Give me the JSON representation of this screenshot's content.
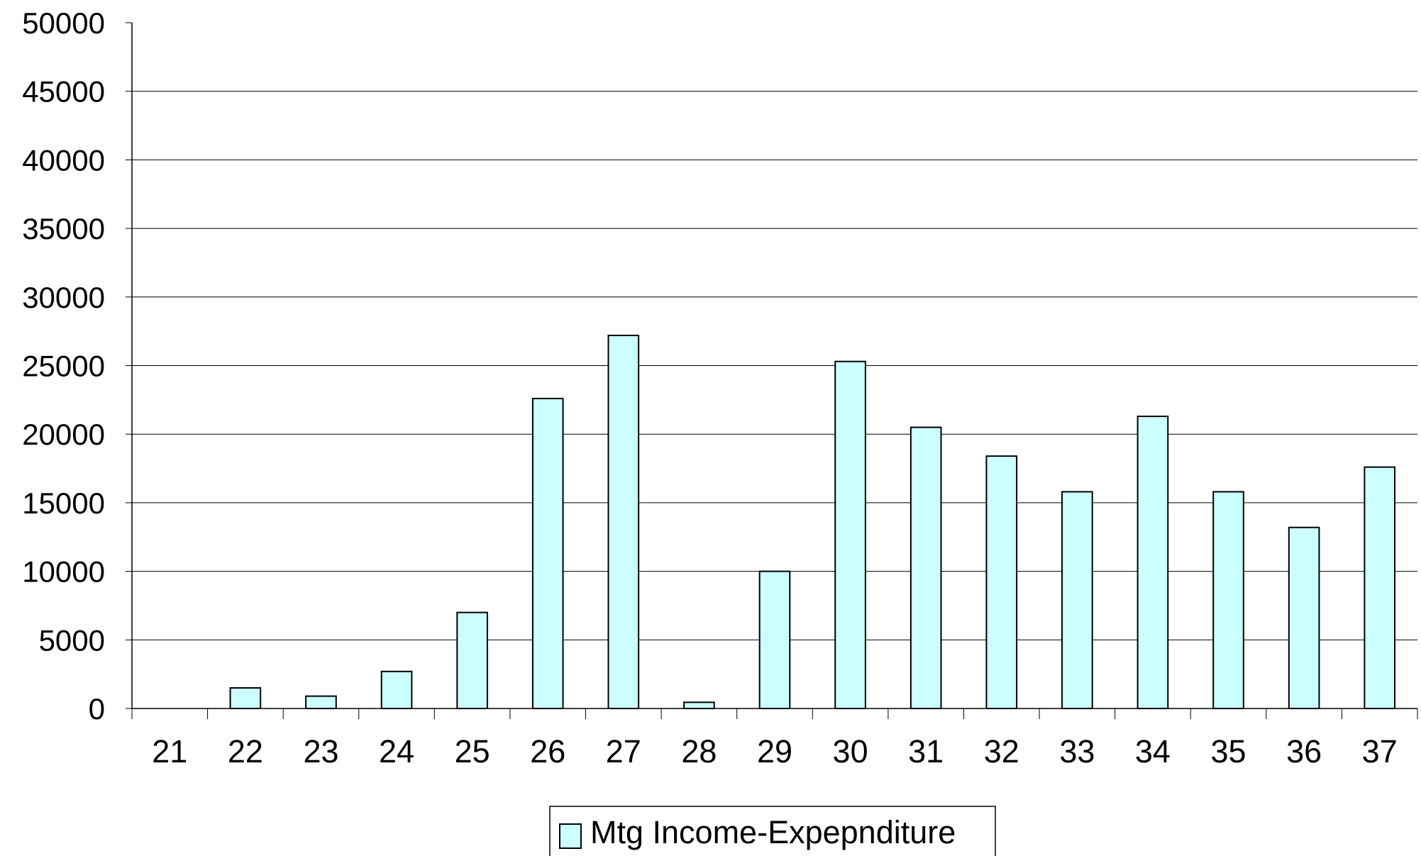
{
  "chart_data": {
    "type": "bar",
    "categories": [
      "21",
      "22",
      "23",
      "24",
      "25",
      "26",
      "27",
      "28",
      "29",
      "30",
      "31",
      "32",
      "33",
      "34",
      "35",
      "36",
      "37"
    ],
    "series": [
      {
        "name": "Mtg Income-Expepnditure",
        "values": [
          0,
          1500,
          900,
          2700,
          7000,
          22600,
          27200,
          450,
          10000,
          25300,
          20500,
          18400,
          15800,
          21300,
          15800,
          13200,
          17600
        ]
      }
    ],
    "title": "",
    "xlabel": "",
    "ylabel": "",
    "ylim": [
      0,
      50000
    ],
    "yticks": [
      "0",
      "5000",
      "10000",
      "15000",
      "20000",
      "25000",
      "30000",
      "35000",
      "40000",
      "45000",
      "50000"
    ],
    "grid": true,
    "legend_position": "bottom-center",
    "colors": {
      "bar_fill": "#ccffff",
      "bar_stroke": "#000000",
      "grid": "#000000"
    }
  }
}
